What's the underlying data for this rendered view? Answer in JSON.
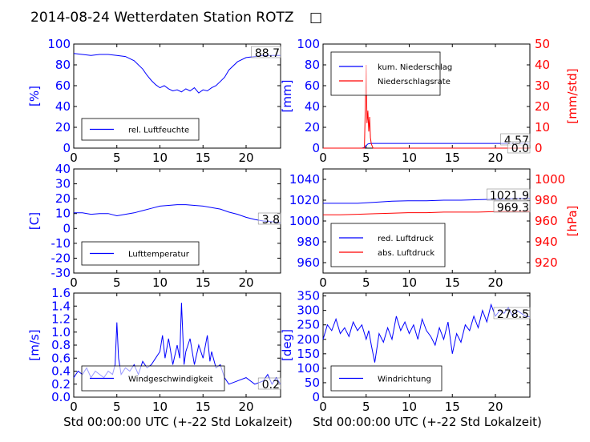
{
  "figure": {
    "title": "2014-08-24 Wetterdaten Station ROTZ",
    "title_glyph": "□",
    "common_xlabel": "Std 00:00:00 UTC (+-22 Std Lokalzeit)"
  },
  "colors": {
    "blue": "#0000ff",
    "red": "#ff0000",
    "black": "#000000"
  },
  "chart_data": [
    {
      "type": "line",
      "panel": "humidity",
      "xlim": [
        0,
        24
      ],
      "xticks": [
        0,
        5,
        10,
        15,
        20
      ],
      "ylim": [
        0,
        100
      ],
      "yticks": [
        0,
        20,
        40,
        60,
        80,
        100
      ],
      "ylabel": "[%]",
      "legend": "bottom-left",
      "current_value": "88.7",
      "series": [
        {
          "name": "rel. Luftfeuchte",
          "color": "#0000ff",
          "x": [
            0,
            1,
            2,
            3,
            4,
            5,
            6,
            7,
            8,
            8.5,
            9,
            9.5,
            10,
            10.5,
            11,
            11.5,
            12,
            12.5,
            13,
            13.5,
            14,
            14.5,
            15,
            15.5,
            16,
            16.5,
            17,
            17.5,
            18,
            19,
            20,
            21,
            22,
            23,
            24
          ],
          "y": [
            91,
            90,
            89,
            90,
            90,
            89,
            88,
            84,
            76,
            70,
            65,
            61,
            58,
            60,
            57,
            55,
            56,
            54,
            57,
            55,
            58,
            53,
            56,
            55,
            58,
            60,
            64,
            68,
            75,
            83,
            87,
            88,
            89,
            89,
            89
          ]
        }
      ]
    },
    {
      "type": "line",
      "panel": "precipitation",
      "xlim": [
        0,
        24
      ],
      "xticks": [
        0,
        5,
        10,
        15,
        20
      ],
      "ylim": [
        0,
        100
      ],
      "yticks": [
        0,
        20,
        40,
        60,
        80,
        100
      ],
      "ylabel": "[mm]",
      "ylim_right": [
        0,
        50
      ],
      "yticks_right": [
        0,
        10,
        20,
        30,
        40,
        50
      ],
      "ylabel_right": "[mm/std]",
      "legend": "top-left",
      "current_values": [
        "4.57",
        "0.0"
      ],
      "series": [
        {
          "name": "kum. Niederschlag",
          "color": "#0000ff",
          "axis": "left",
          "x": [
            0,
            4.5,
            4.8,
            5.0,
            5.2,
            5.5,
            6,
            24
          ],
          "y": [
            0,
            0,
            0.5,
            2.5,
            4.0,
            4.57,
            4.57,
            4.57
          ]
        },
        {
          "name": "Niederschlagsrate",
          "color": "#ff0000",
          "axis": "right",
          "x": [
            0,
            4.8,
            4.9,
            5.0,
            5.1,
            5.2,
            5.3,
            5.4,
            5.5,
            5.6,
            5.8,
            24
          ],
          "y": [
            0,
            0,
            20,
            40,
            12,
            18,
            8,
            15,
            5,
            2,
            0,
            0
          ]
        }
      ]
    },
    {
      "type": "line",
      "panel": "temperature",
      "xlim": [
        0,
        24
      ],
      "xticks": [
        0,
        5,
        10,
        15,
        20
      ],
      "ylim": [
        -30,
        40
      ],
      "yticks": [
        -30,
        -20,
        -10,
        0,
        10,
        20,
        30,
        40
      ],
      "ylabel": "[C]",
      "legend": "bottom-left",
      "current_value": "3.8",
      "series": [
        {
          "name": "Lufttemperatur",
          "color": "#0000ff",
          "x": [
            0,
            1,
            2,
            3,
            4,
            5,
            6,
            7,
            8,
            9,
            10,
            11,
            12,
            13,
            14,
            15,
            16,
            17,
            18,
            19,
            20,
            21,
            22,
            23,
            24
          ],
          "y": [
            10.5,
            10.5,
            9.5,
            10,
            10,
            8.5,
            9.5,
            10.5,
            12,
            13.5,
            15,
            15.5,
            16,
            16,
            15.5,
            15,
            14,
            13,
            11,
            9.5,
            7.5,
            6,
            5,
            4.5,
            3.8
          ]
        }
      ]
    },
    {
      "type": "line",
      "panel": "pressure",
      "xlim": [
        0,
        24
      ],
      "xticks": [
        0,
        5,
        10,
        15,
        20
      ],
      "ylim": [
        950,
        1050
      ],
      "yticks": [
        960,
        980,
        1000,
        1020,
        1040
      ],
      "ylim_right": [
        910,
        1010
      ],
      "yticks_right": [
        920,
        940,
        960,
        980,
        1000
      ],
      "ylabel_right": "[hPa]",
      "legend": "bottom-left",
      "current_values": [
        "1021.9",
        "969.3"
      ],
      "series": [
        {
          "name": "red. Luftdruck",
          "color": "#0000ff",
          "axis": "left",
          "x": [
            0,
            2,
            4,
            6,
            8,
            10,
            12,
            14,
            16,
            18,
            20,
            22,
            24
          ],
          "y": [
            1017,
            1017,
            1017,
            1018,
            1019,
            1019.5,
            1019.5,
            1020,
            1020,
            1020.5,
            1021,
            1021.5,
            1021.9
          ]
        },
        {
          "name": "abs. Luftdruck",
          "color": "#ff0000",
          "axis": "right",
          "x": [
            0,
            2,
            4,
            6,
            8,
            10,
            12,
            14,
            16,
            18,
            20,
            22,
            24
          ],
          "y": [
            966,
            966,
            966.5,
            967,
            967.5,
            968,
            968,
            968.5,
            968.5,
            968.5,
            969,
            969.2,
            969.3
          ]
        }
      ]
    },
    {
      "type": "line",
      "panel": "wind_speed",
      "xlim": [
        0,
        24
      ],
      "xticks": [
        0,
        5,
        10,
        15,
        20
      ],
      "ylim": [
        0,
        1.6
      ],
      "yticks": [
        0.0,
        0.2,
        0.4,
        0.6,
        0.8,
        1.0,
        1.2,
        1.4,
        1.6
      ],
      "ylabel": "[m/s]",
      "legend": "bottom-left",
      "current_value": "0.2",
      "series": [
        {
          "name": "Windgeschwindigkeit",
          "color": "#0000ff",
          "x": [
            0,
            0.5,
            1,
            1.5,
            2,
            2.5,
            3,
            3.5,
            4,
            4.5,
            4.8,
            5,
            5.2,
            5.5,
            6,
            6.5,
            7,
            7.5,
            8,
            8.5,
            9,
            9.5,
            10,
            10.3,
            10.6,
            11,
            11.5,
            12,
            12.3,
            12.5,
            12.8,
            13,
            13.5,
            14,
            14.5,
            15,
            15.5,
            15.8,
            16,
            16.5,
            17,
            17.5,
            18,
            19,
            20,
            21,
            22,
            22.5,
            23,
            23.5,
            24
          ],
          "y": [
            0.3,
            0.4,
            0.35,
            0.45,
            0.3,
            0.4,
            0.35,
            0.3,
            0.4,
            0.35,
            0.5,
            1.15,
            0.6,
            0.35,
            0.45,
            0.4,
            0.5,
            0.35,
            0.55,
            0.45,
            0.5,
            0.6,
            0.7,
            0.95,
            0.6,
            0.9,
            0.5,
            0.8,
            0.6,
            1.45,
            0.5,
            0.7,
            0.9,
            0.5,
            0.8,
            0.6,
            0.95,
            0.55,
            0.7,
            0.45,
            0.5,
            0.3,
            0.2,
            0.25,
            0.3,
            0.2,
            0.25,
            0.35,
            0.2,
            0.3,
            0.2
          ]
        }
      ]
    },
    {
      "type": "line",
      "panel": "wind_direction",
      "xlim": [
        0,
        24
      ],
      "xticks": [
        0,
        5,
        10,
        15,
        20
      ],
      "ylim": [
        0,
        360
      ],
      "yticks": [
        0,
        50,
        100,
        150,
        200,
        250,
        300,
        350
      ],
      "ylabel": "[deg]",
      "legend": "bottom-left",
      "current_value": "278.5",
      "series": [
        {
          "name": "Windrichtung",
          "color": "#0000ff",
          "x": [
            0,
            0.5,
            1,
            1.5,
            2,
            2.5,
            3,
            3.5,
            4,
            4.5,
            5,
            5.3,
            5.6,
            6,
            6.5,
            7,
            7.5,
            8,
            8.5,
            9,
            9.5,
            10,
            10.5,
            11,
            11.5,
            12,
            12.5,
            13,
            13.5,
            14,
            14.5,
            15,
            15.5,
            16,
            16.5,
            17,
            17.5,
            18,
            18.5,
            19,
            19.5,
            20,
            20.5,
            21,
            21.5,
            22,
            22.5,
            23,
            23.5,
            24
          ],
          "y": [
            200,
            250,
            230,
            270,
            220,
            240,
            210,
            260,
            230,
            250,
            200,
            230,
            180,
            120,
            220,
            190,
            240,
            200,
            280,
            230,
            260,
            220,
            250,
            200,
            270,
            230,
            210,
            180,
            240,
            200,
            260,
            150,
            220,
            190,
            250,
            230,
            280,
            240,
            300,
            260,
            320,
            280,
            300,
            290,
            310,
            280,
            300,
            290,
            280,
            278
          ]
        }
      ]
    }
  ]
}
